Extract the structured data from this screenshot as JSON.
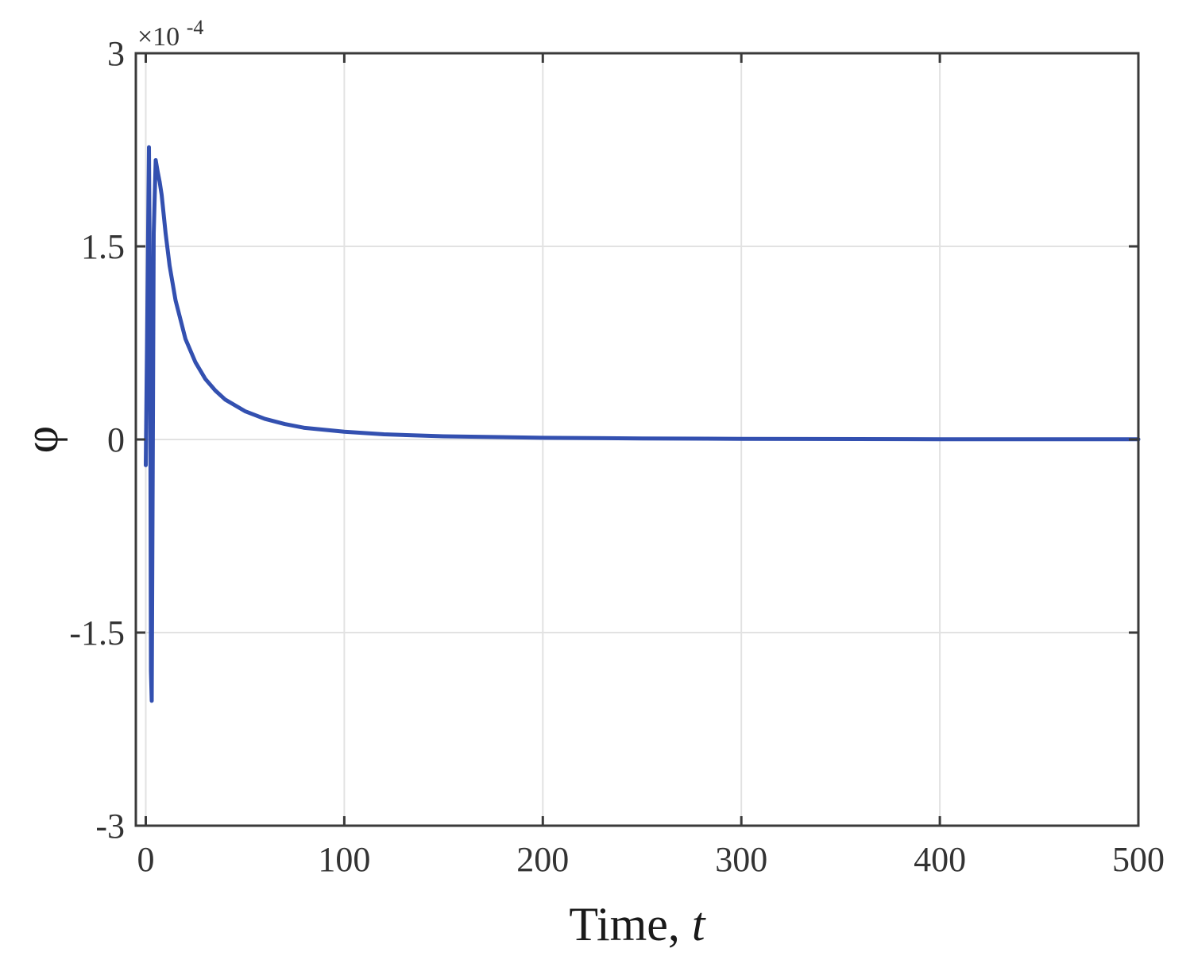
{
  "chart_data": {
    "type": "line",
    "title": "",
    "xlabel": "Time, ",
    "xlabel_italic": "t",
    "ylabel": "φ",
    "y_multiplier_base": "×10",
    "y_multiplier_exponent": "-4",
    "xlim": [
      -5,
      500
    ],
    "ylim": [
      -3,
      3
    ],
    "x_ticks": [
      0,
      100,
      200,
      300,
      400,
      500
    ],
    "x_tick_labels": [
      "0",
      "100",
      "200",
      "300",
      "400",
      "500"
    ],
    "y_ticks": [
      -3,
      -1.5,
      0,
      1.5,
      3
    ],
    "y_tick_labels": [
      "-3",
      "-1.5",
      "0",
      "1.5",
      "3"
    ],
    "grid": true,
    "series": [
      {
        "color": "#3350b0",
        "x": [
          0,
          0.8,
          1.6,
          2.2,
          2.6,
          3.0,
          4.0,
          5.0,
          6.0,
          7.0,
          8.0,
          10,
          12,
          15,
          20,
          25,
          30,
          35,
          40,
          50,
          60,
          70,
          80,
          100,
          120,
          150,
          200,
          250,
          300,
          400,
          500
        ],
        "y": [
          -0.2,
          1.0,
          2.27,
          0.8,
          -1.8,
          -2.03,
          1.6,
          2.17,
          2.08,
          2.0,
          1.9,
          1.6,
          1.35,
          1.08,
          0.78,
          0.6,
          0.47,
          0.38,
          0.31,
          0.22,
          0.16,
          0.12,
          0.09,
          0.06,
          0.04,
          0.025,
          0.013,
          0.008,
          0.005,
          0.002,
          0.001
        ]
      }
    ]
  }
}
